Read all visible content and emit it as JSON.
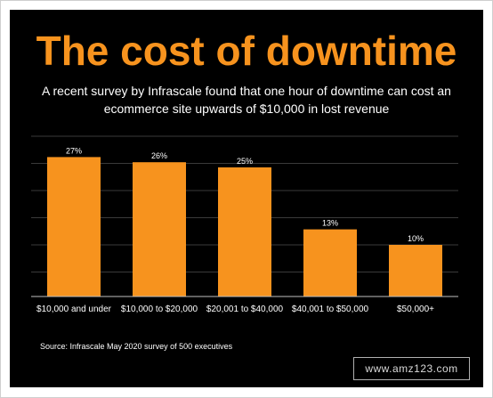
{
  "title": "The cost of downtime",
  "subtitle": "A recent survey by Infrascale found that one hour of downtime can cost an ecommerce site upwards of $10,000 in lost revenue",
  "source": "Source: Infrascale May 2020 survey of 500 executives",
  "watermark": "www.amz123.com",
  "colors": {
    "background": "#000000",
    "bar": "#f7931e",
    "title": "#f7931e",
    "text": "#ffffff",
    "grid": "#3a3a3a"
  },
  "chart_data": {
    "type": "bar",
    "categories": [
      "$10,000 and under",
      "$10,000 to $20,000",
      "$20,001 to $40,000",
      "$40,001 to $50,000",
      "$50,000+"
    ],
    "values": [
      27,
      26,
      25,
      13,
      10
    ],
    "data_labels": [
      "27%",
      "26%",
      "25%",
      "13%",
      "10%"
    ],
    "title": "The cost of downtime",
    "xlabel": "",
    "ylabel": "",
    "ylim": [
      0,
      30
    ],
    "grid": true,
    "legend": "none"
  }
}
